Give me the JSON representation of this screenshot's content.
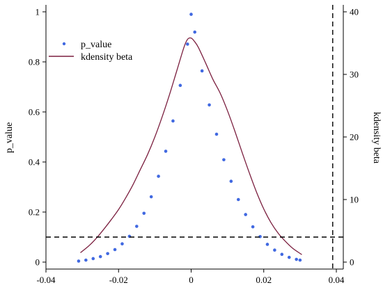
{
  "chart_data": {
    "type": "scatter",
    "title": "",
    "xlabel": "",
    "ylabel": "p_value",
    "y2label": "kdensity beta",
    "xlim": [
      -0.04,
      0.04
    ],
    "ylim": [
      0,
      1
    ],
    "y2lim": [
      0,
      40
    ],
    "xticks": [
      -0.04,
      -0.02,
      0,
      0.02,
      0.04
    ],
    "xtick_labels": [
      "-0.04",
      "-0.02",
      "0",
      "0.02",
      "0.04"
    ],
    "yticks": [
      0,
      0.2,
      0.4,
      0.6,
      0.8,
      1
    ],
    "ytick_labels": [
      "0",
      "0.2",
      "0.4",
      "0.6",
      "0.8",
      "1"
    ],
    "y2ticks": [
      0,
      10,
      20,
      30,
      40
    ],
    "y2tick_labels": [
      "0",
      "10",
      "20",
      "30",
      "40"
    ],
    "grid": false,
    "legend": {
      "placement": "top-left"
    },
    "series": [
      {
        "name": "p_value",
        "kind": "scatter",
        "axis": "left",
        "color": "#4169E1",
        "x": [
          -0.031,
          -0.029,
          -0.027,
          -0.025,
          -0.023,
          -0.021,
          -0.019,
          -0.017,
          -0.015,
          -0.013,
          -0.011,
          -0.009,
          -0.007,
          -0.005,
          -0.003,
          -0.001,
          0,
          0.001,
          0.003,
          0.005,
          0.007,
          0.009,
          0.011,
          0.013,
          0.015,
          0.017,
          0.019,
          0.021,
          0.023,
          0.025,
          0.027,
          0.029,
          0.03
        ],
        "y": [
          0.004,
          0.008,
          0.014,
          0.022,
          0.034,
          0.05,
          0.073,
          0.103,
          0.143,
          0.195,
          0.261,
          0.343,
          0.443,
          0.564,
          0.706,
          0.871,
          0.99,
          0.919,
          0.764,
          0.628,
          0.511,
          0.409,
          0.323,
          0.25,
          0.19,
          0.141,
          0.102,
          0.071,
          0.048,
          0.031,
          0.019,
          0.011,
          0.008
        ]
      },
      {
        "name": "kdensity beta",
        "kind": "line",
        "axis": "right",
        "color": "#7B1F3F",
        "x": [
          -0.0305,
          -0.028,
          -0.026,
          -0.024,
          -0.022,
          -0.02,
          -0.018,
          -0.016,
          -0.014,
          -0.012,
          -0.01,
          -0.008,
          -0.006,
          -0.004,
          -0.002,
          -0.001,
          0,
          0.001,
          0.002,
          0.004,
          0.006,
          0.008,
          0.01,
          0.012,
          0.014,
          0.016,
          0.018,
          0.02,
          0.022,
          0.024,
          0.026,
          0.028,
          0.0305
        ],
        "y": [
          1.5,
          2.7,
          3.9,
          5.3,
          6.8,
          8.4,
          10.3,
          12.4,
          14.8,
          17.2,
          20.0,
          23.2,
          26.7,
          30.5,
          34.3,
          35.6,
          35.8,
          35.2,
          34.3,
          31.8,
          29.2,
          27.0,
          24.2,
          21.0,
          17.6,
          14.3,
          11.2,
          8.5,
          6.3,
          4.6,
          3.3,
          2.2,
          1.2
        ]
      }
    ],
    "annotations": [
      {
        "kind": "hline",
        "axis": "left",
        "y": 0.1,
        "style": "dashed"
      },
      {
        "kind": "vline",
        "x": 0.039,
        "style": "dashed"
      }
    ]
  }
}
